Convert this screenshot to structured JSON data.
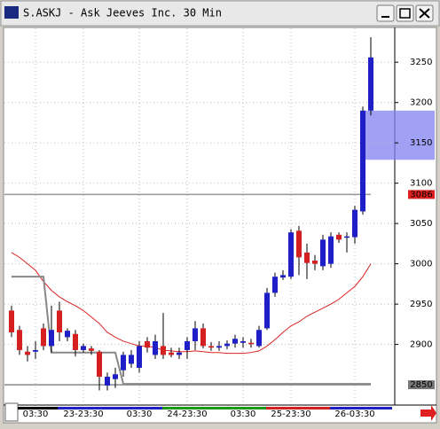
{
  "chart_data": {
    "type": "candlestick",
    "title": "S.ASKJ - Ask Jeeves Inc. 30 Min",
    "categories": [
      null,
      null,
      null,
      "03:30",
      null,
      null,
      null,
      null,
      null,
      "23-23:30",
      null,
      null,
      null,
      null,
      null,
      null,
      "03:30",
      null,
      null,
      null,
      null,
      null,
      "24-23:30",
      null,
      null,
      null,
      null,
      null,
      null,
      "03:30",
      null,
      null,
      null,
      null,
      null,
      "25-23:30",
      null,
      null,
      null,
      null,
      null,
      null,
      null,
      "26-03:30",
      null,
      null
    ],
    "open": [
      2942,
      2918,
      2891,
      2891,
      2920,
      2898,
      2942,
      2909,
      2913,
      2893,
      2895,
      2891,
      2849,
      2857,
      2868,
      2876,
      2871,
      2904,
      2887,
      2898,
      2890,
      2887,
      2893,
      2904,
      2920,
      2898,
      2896,
      2898,
      2901,
      2902,
      2902,
      2898,
      2920,
      2964,
      2983,
      2984,
      3041,
      3014,
      3004,
      2997,
      3000,
      3036,
      3033,
      3033,
      3065,
      3190
    ],
    "high": [
      2948,
      2923,
      2898,
      2904,
      2926,
      2948,
      2953,
      2920,
      2918,
      2901,
      2898,
      2893,
      2865,
      2871,
      2891,
      2893,
      2904,
      2909,
      2912,
      2939,
      2896,
      2896,
      2909,
      2929,
      2926,
      2903,
      2904,
      2905,
      2912,
      2909,
      2907,
      2923,
      2970,
      2989,
      2992,
      3043,
      3047,
      3025,
      3011,
      3036,
      3039,
      3039,
      3039,
      3072,
      3195,
      3281
    ],
    "low": [
      2909,
      2887,
      2879,
      2882,
      2893,
      2890,
      2904,
      2904,
      2885,
      2890,
      2887,
      2843,
      2843,
      2846,
      2860,
      2871,
      2865,
      2890,
      2882,
      2882,
      2884,
      2882,
      2882,
      2893,
      2895,
      2892,
      2892,
      2894,
      2896,
      2896,
      2896,
      2896,
      2918,
      2959,
      2980,
      2981,
      2986,
      2981,
      2992,
      2992,
      2995,
      3026,
      3014,
      3025,
      3061,
      3184
    ],
    "close": [
      2915,
      2893,
      2887,
      2893,
      2898,
      2918,
      2915,
      2917,
      2893,
      2898,
      2892,
      2860,
      2860,
      2863,
      2887,
      2887,
      2898,
      2896,
      2904,
      2887,
      2887,
      2890,
      2904,
      2920,
      2898,
      2896,
      2898,
      2901,
      2907,
      2904,
      2901,
      2918,
      2964,
      2984,
      2986,
      3039,
      3008,
      3001,
      3000,
      3030,
      3034,
      3030,
      3034,
      3067,
      3190,
      3256
    ],
    "up_color": "#1f1fc8",
    "down_color": "#d42020",
    "lines": [
      {
        "color": "#dd2222",
        "values": [
          3014,
          3008,
          3000,
          2992,
          2978,
          2967,
          2959,
          2953,
          2948,
          2942,
          2934,
          2926,
          2915,
          2909,
          2904,
          2901,
          2898,
          2898,
          2896,
          2893,
          2892,
          2891,
          2891,
          2892,
          2891,
          2890,
          2890,
          2889,
          2889,
          2889,
          2890,
          2892,
          2898,
          2906,
          2915,
          2923,
          2928,
          2935,
          2940,
          2945,
          2950,
          2956,
          2964,
          2972,
          2984,
          3000
        ]
      },
      {
        "color": "#888888",
        "values": [
          2984,
          2984,
          2984,
          2984,
          2984,
          2890,
          2890,
          2890,
          2890,
          2890,
          2890,
          2890,
          2890,
          2890,
          2851,
          2851,
          2851,
          2851,
          2851,
          2851,
          2851,
          2851,
          2851,
          2851,
          2851,
          2851,
          2851,
          2851,
          2851,
          2851,
          2851,
          2851,
          2851,
          2851,
          2851,
          2851,
          2851,
          2851,
          2851,
          2851,
          2851,
          2851,
          2851,
          2851,
          2851,
          2851
        ]
      }
    ],
    "markers": [
      3086,
      2850
    ],
    "zone": [
      3129,
      3190
    ],
    "ylim": [
      2827,
      3292
    ],
    "yticks": [
      2900,
      2950,
      3000,
      3050,
      3100,
      3150,
      3200,
      3250
    ],
    "grid": true
  }
}
